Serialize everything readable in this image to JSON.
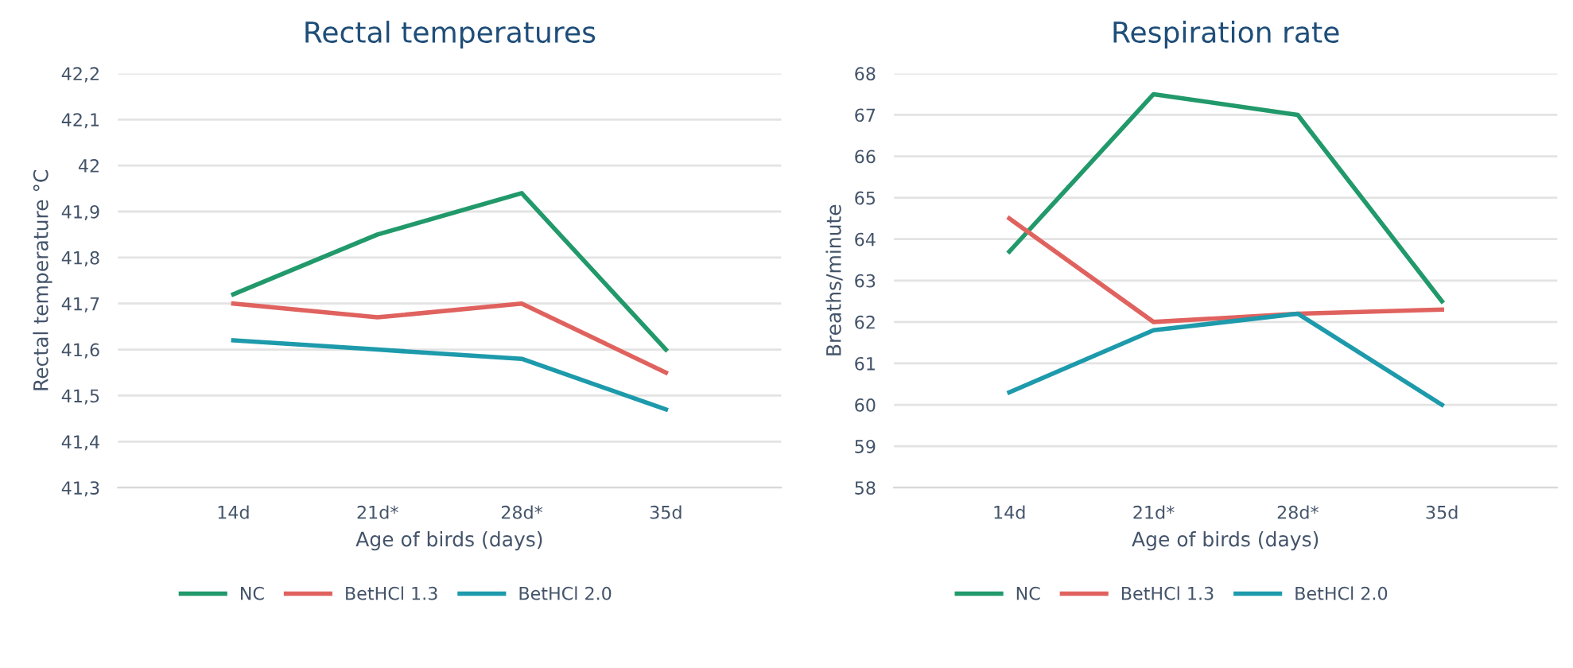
{
  "chart_data": [
    {
      "type": "line",
      "title": "Rectal temperatures",
      "xlabel": "Age of birds (days)",
      "ylabel": "Rectal temperature °C",
      "categories": [
        "14d",
        "21d*",
        "28d*",
        "35d"
      ],
      "series": [
        {
          "name": "NC",
          "color": "#21996b",
          "values": [
            41.72,
            41.85,
            41.94,
            41.6
          ]
        },
        {
          "name": "BetHCl 1.3",
          "color": "#e0625f",
          "values": [
            41.7,
            41.67,
            41.7,
            41.55
          ]
        },
        {
          "name": "BetHCl 2.0",
          "color": "#1d9aab",
          "values": [
            41.62,
            41.6,
            41.58,
            41.47
          ]
        }
      ],
      "ylim": [
        41.3,
        42.2
      ],
      "yticks": [
        {
          "value": 41.3,
          "label": "41,3"
        },
        {
          "value": 41.4,
          "label": "41,4"
        },
        {
          "value": 41.5,
          "label": "41,5"
        },
        {
          "value": 41.6,
          "label": "41,6"
        },
        {
          "value": 41.7,
          "label": "41,7"
        },
        {
          "value": 41.8,
          "label": "41,8"
        },
        {
          "value": 41.9,
          "label": "41,9"
        },
        42,
        {
          "value": 42.1,
          "label": "42,1"
        },
        {
          "value": 42.2,
          "label": "42,2"
        }
      ],
      "grid": "y",
      "legend": "bottom",
      "marker": "none",
      "line_style": "solid"
    },
    {
      "type": "line",
      "title": "Respiration rate",
      "xlabel": "Age of birds (days)",
      "ylabel": "Breaths/minute",
      "categories": [
        "14d",
        "21d*",
        "28d*",
        "35d"
      ],
      "series": [
        {
          "name": "NC",
          "color": "#21996b",
          "values": [
            63.7,
            67.5,
            67.0,
            62.5
          ]
        },
        {
          "name": "BetHCl 1.3",
          "color": "#e0625f",
          "values": [
            64.5,
            62.0,
            62.2,
            62.3
          ]
        },
        {
          "name": "BetHCl 2.0",
          "color": "#1d9aab",
          "values": [
            60.3,
            61.8,
            62.2,
            60.0
          ]
        }
      ],
      "ylim": [
        58,
        68
      ],
      "yticks": [
        58,
        59,
        60,
        61,
        62,
        63,
        64,
        65,
        66,
        67,
        68
      ],
      "grid": "y",
      "legend": "bottom",
      "marker": "none",
      "line_style": "solid"
    }
  ]
}
